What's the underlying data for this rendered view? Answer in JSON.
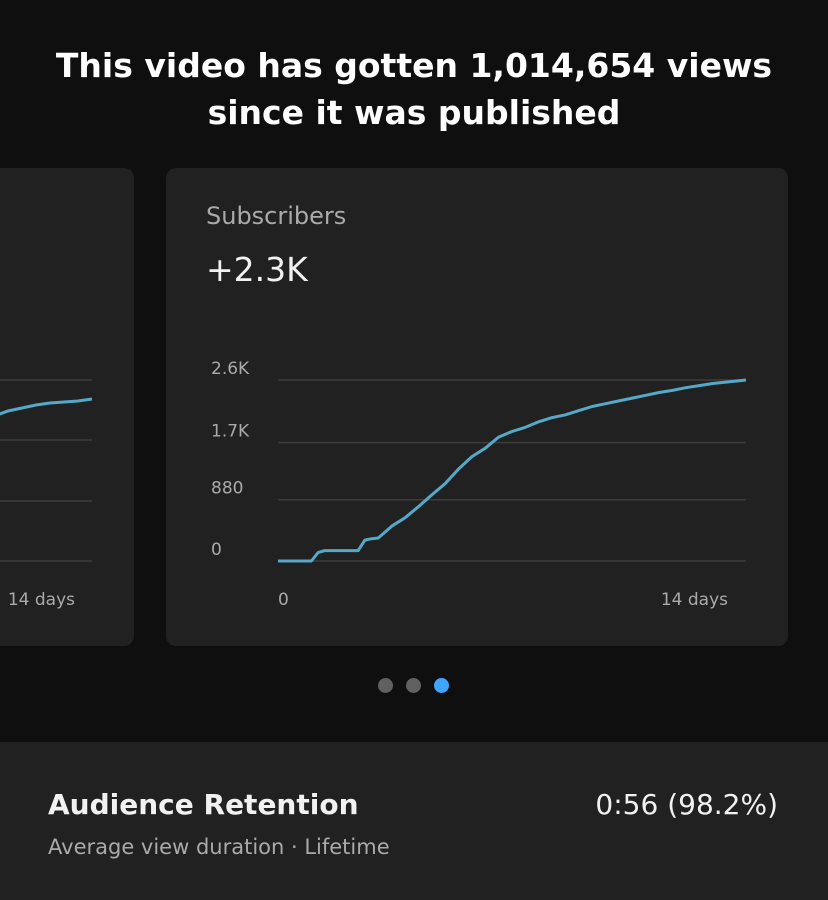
{
  "headline": "This video has gotten 1,014,654 views since it was published",
  "left_card": {
    "x_end_label": "14 days"
  },
  "subscribers_card": {
    "title": "Subscribers",
    "value": "+2.3K"
  },
  "chart_data": {
    "type": "line",
    "title": "",
    "xlabel": "",
    "ylabel": "",
    "x_tick_labels": [
      "0",
      "14 days"
    ],
    "y_tick_labels": [
      "0",
      "880",
      "1.7K",
      "2.6K"
    ],
    "y_tick_values": [
      0,
      880,
      1700,
      2600
    ],
    "xlim": [
      0,
      14
    ],
    "ylim": [
      0,
      2600
    ],
    "grid": true,
    "color": "#56a8c9",
    "series": [
      {
        "x": [
          0,
          1.0,
          1.2,
          1.4,
          2.2,
          2.4,
          2.6,
          2.8,
          3.0,
          3.4,
          3.8,
          4.2,
          4.6,
          5.0,
          5.4,
          5.8,
          6.2,
          6.6,
          7.0,
          7.4,
          7.8,
          8.2,
          8.6,
          9.0,
          9.4,
          9.8,
          10.2,
          10.6,
          11.0,
          11.4,
          11.8,
          12.2,
          12.6,
          13.0,
          13.4,
          13.8,
          14.0
        ],
        "y": [
          0,
          0,
          120,
          150,
          150,
          150,
          300,
          320,
          330,
          500,
          620,
          780,
          950,
          1110,
          1320,
          1500,
          1620,
          1780,
          1860,
          1920,
          2000,
          2060,
          2100,
          2160,
          2220,
          2260,
          2300,
          2340,
          2380,
          2420,
          2450,
          2490,
          2520,
          2550,
          2570,
          2590,
          2600
        ]
      }
    ]
  },
  "left_chart_data": {
    "type": "line",
    "partial": true,
    "color": "#56a8c9",
    "x_end_label": "14 days"
  },
  "pagination": {
    "count": 3,
    "active_index": 2,
    "active_color": "#3ea6ff",
    "inactive_color": "#606060"
  },
  "retention": {
    "title": "Audience Retention",
    "subtitle": "Average view duration · Lifetime",
    "value": "0:56 (98.2%)"
  }
}
